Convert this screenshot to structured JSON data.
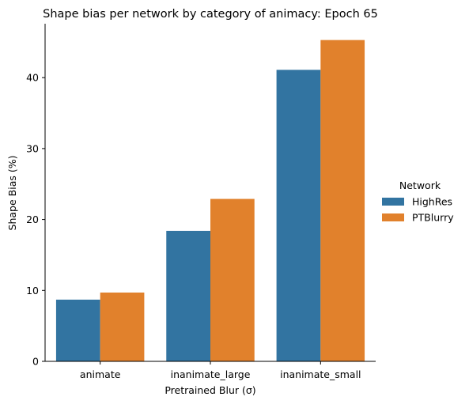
{
  "chart_data": {
    "type": "bar",
    "title": "Shape bias per network by category of animacy: Epoch 65",
    "xlabel": "Pretrained Blur (σ)",
    "ylabel": "Shape Bias (%)",
    "categories": [
      "animate",
      "inanimate_large",
      "inanimate_small"
    ],
    "series": [
      {
        "name": "HighRes",
        "color": "#3274a1",
        "values": [
          8.7,
          18.4,
          41.1
        ]
      },
      {
        "name": "PTBlurry",
        "color": "#e1812c",
        "values": [
          9.7,
          22.9,
          45.3
        ]
      }
    ],
    "ylim": [
      0,
      47.6
    ],
    "yticks": [
      0,
      10,
      20,
      30,
      40
    ],
    "grid": false,
    "legend": {
      "title": "Network",
      "placement": "right"
    }
  }
}
